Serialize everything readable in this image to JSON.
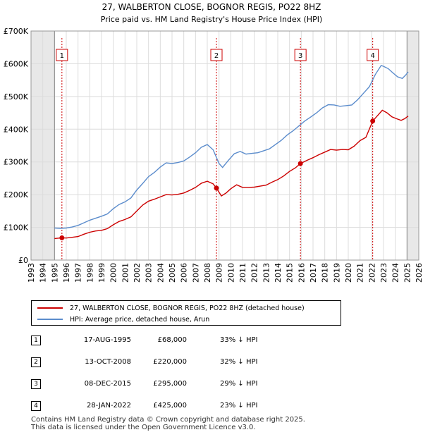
{
  "chart_data": {
    "type": "line",
    "title": "27, WALBERTON CLOSE, BOGNOR REGIS, PO22 8HZ",
    "subtitle": "Price paid vs. HM Land Registry's House Price Index (HPI)",
    "xlim": [
      1993,
      2026
    ],
    "ylim": [
      0,
      700000
    ],
    "x_ticks": [
      1993,
      1994,
      1995,
      1996,
      1997,
      1998,
      1999,
      2000,
      2001,
      2002,
      2003,
      2004,
      2005,
      2006,
      2007,
      2008,
      2009,
      2010,
      2011,
      2012,
      2013,
      2014,
      2015,
      2016,
      2017,
      2018,
      2019,
      2020,
      2021,
      2022,
      2023,
      2024,
      2025,
      2026
    ],
    "y_ticks": [
      {
        "value": 0,
        "label": "£0"
      },
      {
        "value": 100000,
        "label": "£100K"
      },
      {
        "value": 200000,
        "label": "£200K"
      },
      {
        "value": 300000,
        "label": "£300K"
      },
      {
        "value": 400000,
        "label": "£400K"
      },
      {
        "value": 500000,
        "label": "£500K"
      },
      {
        "value": 600000,
        "label": "£600K"
      },
      {
        "value": 700000,
        "label": "£700K"
      }
    ],
    "data_available_from": 1995.0,
    "data_available_to": 2025.0,
    "series": [
      {
        "name": "27, WALBERTON CLOSE, BOGNOR REGIS, PO22 8HZ (detached house)",
        "color": "#cc0000",
        "points": [
          [
            1995.0,
            66000
          ],
          [
            1995.63,
            68000
          ],
          [
            1996.0,
            67500
          ],
          [
            1996.5,
            69500
          ],
          [
            1997.0,
            72000
          ],
          [
            1997.5,
            79000
          ],
          [
            1998.0,
            85000
          ],
          [
            1998.5,
            89000
          ],
          [
            1999.0,
            91000
          ],
          [
            1999.5,
            96000
          ],
          [
            2000.0,
            108000
          ],
          [
            2000.5,
            118000
          ],
          [
            2001.0,
            124000
          ],
          [
            2001.5,
            132000
          ],
          [
            2002.0,
            150000
          ],
          [
            2002.5,
            168000
          ],
          [
            2003.0,
            180000
          ],
          [
            2003.5,
            186000
          ],
          [
            2004.0,
            193000
          ],
          [
            2004.5,
            200000
          ],
          [
            2005.0,
            199000
          ],
          [
            2005.5,
            201000
          ],
          [
            2006.0,
            205000
          ],
          [
            2006.5,
            213000
          ],
          [
            2007.0,
            222000
          ],
          [
            2007.5,
            235000
          ],
          [
            2008.0,
            241000
          ],
          [
            2008.5,
            233000
          ],
          [
            2008.78,
            220000
          ],
          [
            2009.2,
            196000
          ],
          [
            2009.6,
            205000
          ],
          [
            2010.0,
            218000
          ],
          [
            2010.5,
            230000
          ],
          [
            2011.0,
            222000
          ],
          [
            2011.5,
            222000
          ],
          [
            2012.0,
            223000
          ],
          [
            2012.5,
            226000
          ],
          [
            2013.0,
            229000
          ],
          [
            2013.5,
            238000
          ],
          [
            2014.0,
            246000
          ],
          [
            2014.5,
            257000
          ],
          [
            2015.0,
            271000
          ],
          [
            2015.5,
            282000
          ],
          [
            2015.93,
            295000
          ],
          [
            2016.5,
            305000
          ],
          [
            2017.0,
            313000
          ],
          [
            2017.5,
            322000
          ],
          [
            2018.0,
            330000
          ],
          [
            2018.5,
            338000
          ],
          [
            2019.0,
            336000
          ],
          [
            2019.5,
            338000
          ],
          [
            2020.0,
            337000
          ],
          [
            2020.5,
            348000
          ],
          [
            2021.0,
            365000
          ],
          [
            2021.5,
            375000
          ],
          [
            2022.08,
            425000
          ],
          [
            2022.5,
            442000
          ],
          [
            2022.9,
            458000
          ],
          [
            2023.3,
            450000
          ],
          [
            2023.7,
            438000
          ],
          [
            2024.1,
            432000
          ],
          [
            2024.5,
            427000
          ],
          [
            2024.8,
            432000
          ],
          [
            2025.1,
            440000
          ]
        ]
      },
      {
        "name": "HPI: Average price, detached house, Arun",
        "color": "#5b8ccc",
        "points": [
          [
            1995.0,
            98000
          ],
          [
            1995.5,
            97000
          ],
          [
            1996.0,
            98000
          ],
          [
            1996.5,
            101000
          ],
          [
            1997.0,
            106000
          ],
          [
            1997.5,
            114000
          ],
          [
            1998.0,
            122000
          ],
          [
            1998.5,
            128000
          ],
          [
            1999.0,
            134000
          ],
          [
            1999.5,
            141000
          ],
          [
            2000.0,
            157000
          ],
          [
            2000.5,
            170000
          ],
          [
            2001.0,
            178000
          ],
          [
            2001.5,
            190000
          ],
          [
            2002.0,
            214000
          ],
          [
            2002.5,
            234000
          ],
          [
            2003.0,
            255000
          ],
          [
            2003.5,
            268000
          ],
          [
            2004.0,
            284000
          ],
          [
            2004.5,
            297000
          ],
          [
            2005.0,
            295000
          ],
          [
            2005.5,
            298000
          ],
          [
            2006.0,
            303000
          ],
          [
            2006.5,
            315000
          ],
          [
            2007.0,
            328000
          ],
          [
            2007.5,
            345000
          ],
          [
            2008.0,
            353000
          ],
          [
            2008.5,
            337000
          ],
          [
            2009.0,
            295000
          ],
          [
            2009.3,
            283000
          ],
          [
            2009.8,
            305000
          ],
          [
            2010.3,
            325000
          ],
          [
            2010.8,
            332000
          ],
          [
            2011.3,
            324000
          ],
          [
            2011.8,
            326000
          ],
          [
            2012.3,
            328000
          ],
          [
            2012.8,
            334000
          ],
          [
            2013.3,
            340000
          ],
          [
            2013.8,
            353000
          ],
          [
            2014.3,
            366000
          ],
          [
            2014.8,
            382000
          ],
          [
            2015.3,
            395000
          ],
          [
            2015.8,
            410000
          ],
          [
            2016.3,
            425000
          ],
          [
            2016.8,
            437000
          ],
          [
            2017.3,
            450000
          ],
          [
            2017.8,
            465000
          ],
          [
            2018.3,
            475000
          ],
          [
            2018.8,
            474000
          ],
          [
            2019.3,
            470000
          ],
          [
            2019.8,
            472000
          ],
          [
            2020.3,
            474000
          ],
          [
            2020.8,
            490000
          ],
          [
            2021.3,
            510000
          ],
          [
            2021.8,
            530000
          ],
          [
            2022.3,
            567000
          ],
          [
            2022.8,
            595000
          ],
          [
            2023.0,
            592000
          ],
          [
            2023.4,
            585000
          ],
          [
            2023.8,
            572000
          ],
          [
            2024.2,
            560000
          ],
          [
            2024.6,
            555000
          ],
          [
            2024.9,
            566000
          ],
          [
            2025.1,
            575000
          ]
        ]
      }
    ],
    "markers": [
      {
        "label": "1",
        "x": 1995.63,
        "y": 68000
      },
      {
        "label": "2",
        "x": 2008.78,
        "y": 220000
      },
      {
        "label": "3",
        "x": 2015.93,
        "y": 295000
      },
      {
        "label": "4",
        "x": 2022.08,
        "y": 425000
      }
    ]
  },
  "title": "27, WALBERTON CLOSE, BOGNOR REGIS, PO22 8HZ",
  "subtitle": "Price paid vs. HM Land Registry's House Price Index (HPI)",
  "legend": {
    "property": "27, WALBERTON CLOSE, BOGNOR REGIS, PO22 8HZ (detached house)",
    "hpi": "HPI: Average price, detached house, Arun",
    "property_color": "#cc0000",
    "hpi_color": "#5b8ccc"
  },
  "transactions": [
    {
      "num": "1",
      "date": "17-AUG-1995",
      "price": "£68,000",
      "hpi": "33% ↓ HPI"
    },
    {
      "num": "2",
      "date": "13-OCT-2008",
      "price": "£220,000",
      "hpi": "32% ↓ HPI"
    },
    {
      "num": "3",
      "date": "08-DEC-2015",
      "price": "£295,000",
      "hpi": "29% ↓ HPI"
    },
    {
      "num": "4",
      "date": "28-JAN-2022",
      "price": "£425,000",
      "hpi": "23% ↓ HPI"
    }
  ],
  "footer": {
    "line1": "Contains HM Land Registry data © Crown copyright and database right 2025.",
    "line2": "This data is licensed under the Open Government Licence v3.0."
  }
}
